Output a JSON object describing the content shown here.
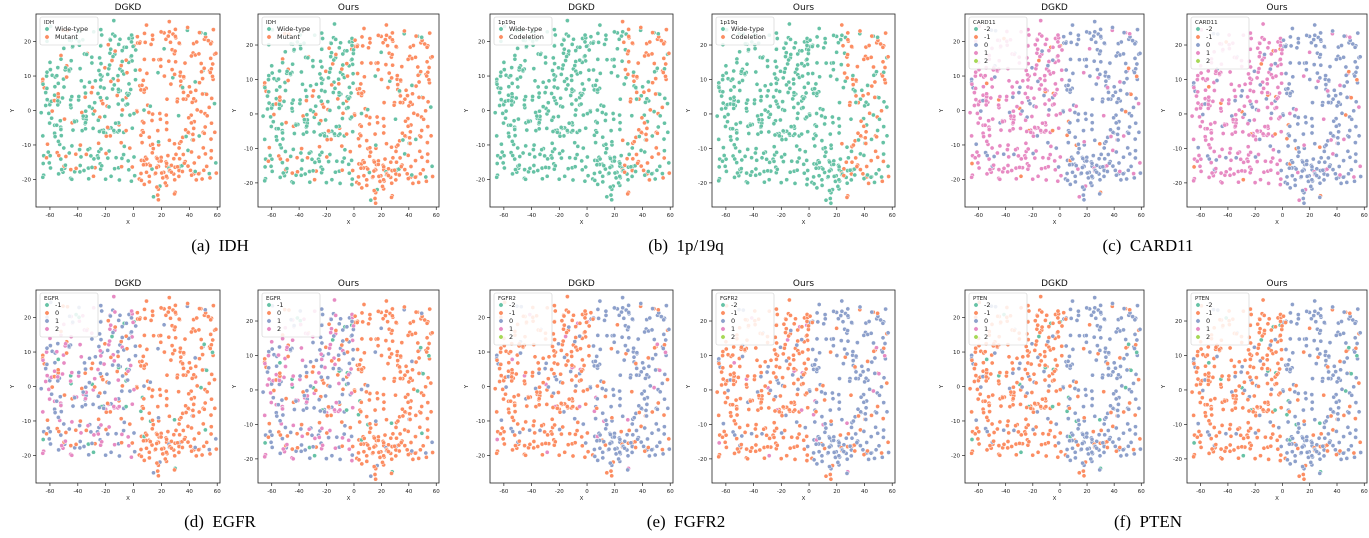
{
  "colors": {
    "teal": "#66c2a5",
    "orange": "#fc8d62",
    "blue": "#8da0cb",
    "pink": "#e78ac3",
    "green": "#a6d854"
  },
  "panels": [
    {
      "label": "(a)",
      "name": "IDH"
    },
    {
      "label": "(b)",
      "name": "1p/19q"
    },
    {
      "label": "(c)",
      "name": "CARD11"
    },
    {
      "label": "(d)",
      "name": "EGFR"
    },
    {
      "label": "(e)",
      "name": "FGFR2"
    },
    {
      "label": "(f)",
      "name": "PTEN"
    }
  ],
  "chart_data": [
    {
      "type": "scatter",
      "panel": 0,
      "title": "DGKD",
      "xlabel": "X",
      "ylabel": "Y",
      "xlim": [
        -70,
        62
      ],
      "ylim": [
        -28,
        28
      ],
      "xticks": [
        -60,
        -40,
        -20,
        0,
        20,
        40,
        60
      ],
      "yticks": [
        -20,
        -10,
        0,
        10,
        20
      ],
      "legend_title": "IDH",
      "legend_position": "top-left",
      "series": [
        {
          "name": "Wide-type",
          "color": "#66c2a5"
        },
        {
          "name": "Mutant",
          "color": "#fc8d62"
        }
      ]
    },
    {
      "type": "scatter",
      "panel": 0,
      "title": "Ours",
      "xlabel": "X",
      "ylabel": "Y",
      "xlim": [
        -70,
        62
      ],
      "ylim": [
        -27,
        29
      ],
      "xticks": [
        -60,
        -40,
        -20,
        0,
        20,
        40,
        60
      ],
      "yticks": [
        -20,
        -10,
        0,
        10,
        20
      ],
      "legend_title": "IDH",
      "legend_position": "top-left",
      "series": [
        {
          "name": "Wide-type",
          "color": "#66c2a5"
        },
        {
          "name": "Mutant",
          "color": "#fc8d62"
        }
      ]
    },
    {
      "type": "scatter",
      "panel": 1,
      "title": "DGKD",
      "xlabel": "X",
      "ylabel": "Y",
      "xlim": [
        -70,
        62
      ],
      "ylim": [
        -28,
        28
      ],
      "xticks": [
        -60,
        -40,
        -20,
        0,
        20,
        40,
        60
      ],
      "yticks": [
        -20,
        -10,
        0,
        10,
        20
      ],
      "legend_title": "1p19q",
      "legend_position": "top-left",
      "series": [
        {
          "name": "Wide-type",
          "color": "#66c2a5"
        },
        {
          "name": "Codeletion",
          "color": "#fc8d62"
        }
      ]
    },
    {
      "type": "scatter",
      "panel": 1,
      "title": "Ours",
      "xlabel": "X",
      "ylabel": "Y",
      "xlim": [
        -70,
        62
      ],
      "ylim": [
        -27,
        29
      ],
      "xticks": [
        -60,
        -40,
        -20,
        0,
        20,
        40,
        60
      ],
      "yticks": [
        -20,
        -10,
        0,
        10,
        20
      ],
      "legend_title": "1p19q",
      "legend_position": "top-left",
      "series": [
        {
          "name": "Wide-type",
          "color": "#66c2a5"
        },
        {
          "name": "Codeletion",
          "color": "#fc8d62"
        }
      ]
    },
    {
      "type": "scatter",
      "panel": 2,
      "title": "DGKD",
      "xlabel": "X",
      "ylabel": "Y",
      "xlim": [
        -70,
        62
      ],
      "ylim": [
        -28,
        28
      ],
      "xticks": [
        -60,
        -40,
        -20,
        0,
        20,
        40,
        60
      ],
      "yticks": [
        -20,
        -10,
        0,
        10,
        20
      ],
      "legend_title": "CARD11",
      "legend_position": "top-left",
      "series": [
        {
          "name": "-2",
          "color": "#66c2a5"
        },
        {
          "name": "-1",
          "color": "#fc8d62"
        },
        {
          "name": "0",
          "color": "#8da0cb"
        },
        {
          "name": "1",
          "color": "#e78ac3"
        },
        {
          "name": "2",
          "color": "#a6d854"
        }
      ]
    },
    {
      "type": "scatter",
      "panel": 2,
      "title": "Ours",
      "xlabel": "X",
      "ylabel": "Y",
      "xlim": [
        -70,
        62
      ],
      "ylim": [
        -27,
        29
      ],
      "xticks": [
        -60,
        -40,
        -20,
        0,
        20,
        40,
        60
      ],
      "yticks": [
        -20,
        -10,
        0,
        10,
        20
      ],
      "legend_title": "CARD11",
      "legend_position": "top-left",
      "series": [
        {
          "name": "-2",
          "color": "#66c2a5"
        },
        {
          "name": "-1",
          "color": "#fc8d62"
        },
        {
          "name": "0",
          "color": "#8da0cb"
        },
        {
          "name": "1",
          "color": "#e78ac3"
        },
        {
          "name": "2",
          "color": "#a6d854"
        }
      ]
    },
    {
      "type": "scatter",
      "panel": 3,
      "title": "DGKD",
      "xlabel": "X",
      "ylabel": "Y",
      "xlim": [
        -70,
        62
      ],
      "ylim": [
        -28,
        28
      ],
      "xticks": [
        -60,
        -40,
        -20,
        0,
        20,
        40,
        60
      ],
      "yticks": [
        -20,
        -10,
        0,
        10,
        20
      ],
      "legend_title": "EGFR",
      "legend_position": "top-left",
      "series": [
        {
          "name": "-1",
          "color": "#66c2a5"
        },
        {
          "name": "0",
          "color": "#fc8d62"
        },
        {
          "name": "1",
          "color": "#8da0cb"
        },
        {
          "name": "2",
          "color": "#e78ac3"
        }
      ]
    },
    {
      "type": "scatter",
      "panel": 3,
      "title": "Ours",
      "xlabel": "X",
      "ylabel": "Y",
      "xlim": [
        -70,
        62
      ],
      "ylim": [
        -27,
        29
      ],
      "xticks": [
        -60,
        -40,
        -20,
        0,
        20,
        40,
        60
      ],
      "yticks": [
        -20,
        -10,
        0,
        10,
        20
      ],
      "legend_title": "EGFR",
      "legend_position": "top-left",
      "series": [
        {
          "name": "-1",
          "color": "#66c2a5"
        },
        {
          "name": "0",
          "color": "#fc8d62"
        },
        {
          "name": "1",
          "color": "#8da0cb"
        },
        {
          "name": "2",
          "color": "#e78ac3"
        }
      ]
    },
    {
      "type": "scatter",
      "panel": 4,
      "title": "DGKD",
      "xlabel": "X",
      "ylabel": "Y",
      "xlim": [
        -70,
        62
      ],
      "ylim": [
        -28,
        28
      ],
      "xticks": [
        -60,
        -40,
        -20,
        0,
        20,
        40,
        60
      ],
      "yticks": [
        -20,
        -10,
        0,
        10,
        20
      ],
      "legend_title": "FGFR2",
      "legend_position": "top-left",
      "series": [
        {
          "name": "-2",
          "color": "#66c2a5"
        },
        {
          "name": "-1",
          "color": "#fc8d62"
        },
        {
          "name": "0",
          "color": "#8da0cb"
        },
        {
          "name": "1",
          "color": "#e78ac3"
        },
        {
          "name": "2",
          "color": "#a6d854"
        }
      ]
    },
    {
      "type": "scatter",
      "panel": 4,
      "title": "Ours",
      "xlabel": "X",
      "ylabel": "Y",
      "xlim": [
        -70,
        62
      ],
      "ylim": [
        -27,
        29
      ],
      "xticks": [
        -60,
        -40,
        -20,
        0,
        20,
        40,
        60
      ],
      "yticks": [
        -20,
        -10,
        0,
        10,
        20
      ],
      "legend_title": "FGFR2",
      "legend_position": "top-left",
      "series": [
        {
          "name": "-2",
          "color": "#66c2a5"
        },
        {
          "name": "-1",
          "color": "#fc8d62"
        },
        {
          "name": "0",
          "color": "#8da0cb"
        },
        {
          "name": "1",
          "color": "#e78ac3"
        },
        {
          "name": "2",
          "color": "#a6d854"
        }
      ]
    },
    {
      "type": "scatter",
      "panel": 5,
      "title": "DGKD",
      "xlabel": "X",
      "ylabel": "Y",
      "xlim": [
        -70,
        62
      ],
      "ylim": [
        -28,
        28
      ],
      "xticks": [
        -60,
        -40,
        -20,
        0,
        20,
        40,
        60
      ],
      "yticks": [
        -20,
        -10,
        0,
        10,
        20
      ],
      "legend_title": "PTEN",
      "legend_position": "top-left",
      "series": [
        {
          "name": "-2",
          "color": "#66c2a5"
        },
        {
          "name": "-1",
          "color": "#fc8d62"
        },
        {
          "name": "0",
          "color": "#8da0cb"
        },
        {
          "name": "1",
          "color": "#e78ac3"
        },
        {
          "name": "2",
          "color": "#a6d854"
        }
      ]
    },
    {
      "type": "scatter",
      "panel": 5,
      "title": "Ours",
      "xlabel": "X",
      "ylabel": "Y",
      "xlim": [
        -70,
        62
      ],
      "ylim": [
        -27,
        29
      ],
      "xticks": [
        -60,
        -40,
        -20,
        0,
        20,
        40,
        60
      ],
      "yticks": [
        -20,
        -10,
        0,
        10,
        20
      ],
      "legend_title": "PTEN",
      "legend_position": "top-left",
      "series": [
        {
          "name": "-2",
          "color": "#66c2a5"
        },
        {
          "name": "-1",
          "color": "#fc8d62"
        },
        {
          "name": "0",
          "color": "#8da0cb"
        },
        {
          "name": "1",
          "color": "#e78ac3"
        },
        {
          "name": "2",
          "color": "#a6d854"
        }
      ]
    }
  ]
}
